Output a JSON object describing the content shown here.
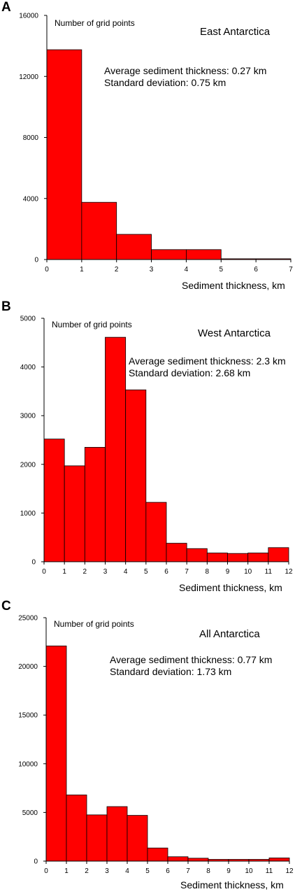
{
  "panels": [
    {
      "letter": "A",
      "title": "East Antarctica",
      "ylabel": "Number of grid points",
      "xlabel": "Sediment thickness, km",
      "stat_avg": "Average sediment thickness: 0.27 km",
      "stat_sd": "Standard deviation: 0.75 km"
    },
    {
      "letter": "B",
      "title": "West Antarctica",
      "ylabel": "Number of grid points",
      "xlabel": "Sediment thickness, km",
      "stat_avg": "Average sediment thickness: 2.3 km",
      "stat_sd": "Standard deviation: 2.68 km"
    },
    {
      "letter": "C",
      "title": "All Antarctica",
      "ylabel": "Number of grid points",
      "xlabel": "Sediment thickness, km",
      "stat_avg": "Average sediment thickness: 0.77 km",
      "stat_sd": "Standard deviation: 1.73 km"
    }
  ],
  "chart_data": [
    {
      "type": "bar",
      "title": "East Antarctica",
      "xlabel": "Sediment thickness, km",
      "ylabel": "Number of grid points",
      "bin_edges": [
        0,
        1,
        2,
        3,
        4,
        5,
        6,
        7
      ],
      "values": [
        13750,
        3750,
        1650,
        650,
        650,
        50,
        50
      ],
      "xlim": [
        0,
        7
      ],
      "ylim": [
        0,
        16000
      ],
      "xticks": [
        0,
        1,
        2,
        3,
        4,
        5,
        6,
        7
      ],
      "yticks": [
        0,
        4000,
        8000,
        12000,
        16000
      ],
      "bar_color": "#ff0000",
      "grid": false
    },
    {
      "type": "bar",
      "title": "West Antarctica",
      "xlabel": "Sediment thickness, km",
      "ylabel": "Number of grid points",
      "bin_edges": [
        0,
        1,
        2,
        3,
        4,
        5,
        6,
        7,
        8,
        9,
        10,
        11,
        12
      ],
      "values": [
        2520,
        1970,
        2350,
        4610,
        3530,
        1220,
        380,
        270,
        180,
        170,
        180,
        290
      ],
      "xlim": [
        0,
        12
      ],
      "ylim": [
        0,
        5000
      ],
      "xticks": [
        0,
        1,
        2,
        3,
        4,
        5,
        6,
        7,
        8,
        9,
        10,
        11,
        12
      ],
      "yticks": [
        0,
        1000,
        2000,
        3000,
        4000,
        5000
      ],
      "bar_color": "#ff0000",
      "grid": false
    },
    {
      "type": "bar",
      "title": "All Antarctica",
      "xlabel": "Sediment thickness, km",
      "ylabel": "Number of grid points",
      "bin_edges": [
        0,
        1,
        2,
        3,
        4,
        5,
        6,
        7,
        8,
        9,
        10,
        11,
        12
      ],
      "values": [
        22100,
        6800,
        4750,
        5600,
        4700,
        1350,
        450,
        300,
        180,
        180,
        180,
        330
      ],
      "xlim": [
        0,
        12
      ],
      "ylim": [
        0,
        25000
      ],
      "xticks": [
        0,
        1,
        2,
        3,
        4,
        5,
        6,
        7,
        8,
        9,
        10,
        11,
        12
      ],
      "yticks": [
        0,
        5000,
        10000,
        15000,
        20000,
        25000
      ],
      "bar_color": "#ff0000",
      "grid": false
    }
  ]
}
